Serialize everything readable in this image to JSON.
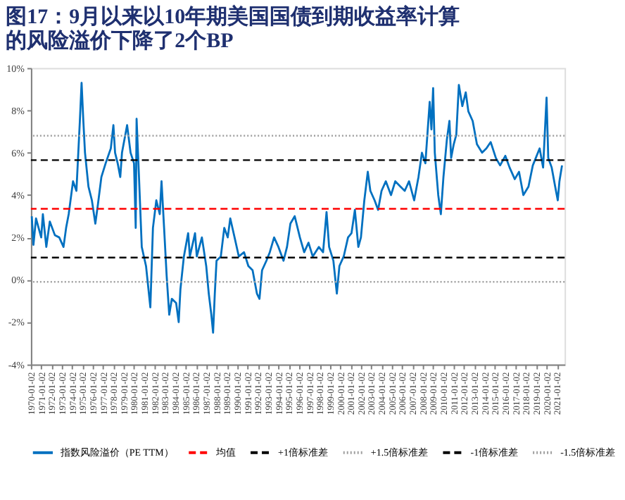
{
  "chart_data": {
    "type": "line",
    "title": "图17：9月以来以10年期美国国债到期收益率计算的风险溢价下降了2个BP",
    "x": [
      "1970-02",
      "1970-04",
      "1970-07",
      "1971-01",
      "1971-03",
      "1971-07",
      "1971-11",
      "1972-05",
      "1972-10",
      "1973-03",
      "1973-06",
      "1973-09",
      "1974-02",
      "1974-06",
      "1974-10",
      "1974-12",
      "1975-02",
      "1975-04",
      "1975-08",
      "1975-12",
      "1976-04",
      "1976-07",
      "1976-11",
      "1977-04",
      "1977-10",
      "1978-01",
      "1978-03",
      "1978-06",
      "1978-09",
      "1978-11",
      "1979-05",
      "1979-09",
      "1980-01",
      "1980-03",
      "1980-04",
      "1980-07",
      "1980-10",
      "1981-03",
      "1981-08",
      "1981-11",
      "1982-03",
      "1982-07",
      "1982-09",
      "1982-12",
      "1983-03",
      "1983-06",
      "1983-09",
      "1984-02",
      "1984-05",
      "1984-07",
      "1984-11",
      "1985-04",
      "1985-06",
      "1985-12",
      "1986-02",
      "1986-08",
      "1987-01",
      "1987-04",
      "1987-07",
      "1987-09",
      "1987-11",
      "1988-01",
      "1988-06",
      "1988-10",
      "1989-02",
      "1989-05",
      "1989-10",
      "1990-03",
      "1990-09",
      "1991-02",
      "1991-07",
      "1991-12",
      "1992-03",
      "1992-06",
      "1992-11",
      "1993-03",
      "1993-08",
      "1994-01",
      "1994-07",
      "1994-11",
      "1995-03",
      "1995-08",
      "1996-02",
      "1996-07",
      "1996-12",
      "1997-05",
      "1997-12",
      "1998-05",
      "1998-09",
      "1998-12",
      "1999-05",
      "1999-09",
      "1999-12",
      "2000-05",
      "2000-10",
      "2001-02",
      "2001-06",
      "2001-10",
      "2002-01",
      "2002-05",
      "2002-09",
      "2002-12",
      "2003-05",
      "2003-09",
      "2004-01",
      "2004-06",
      "2004-12",
      "2005-05",
      "2005-11",
      "2006-04",
      "2006-09",
      "2007-03",
      "2007-08",
      "2007-12",
      "2008-04",
      "2008-09",
      "2008-11",
      "2009-01",
      "2009-03",
      "2009-07",
      "2009-10",
      "2010-01",
      "2010-05",
      "2010-08",
      "2010-10",
      "2011-01",
      "2011-04",
      "2011-07",
      "2011-11",
      "2012-03",
      "2012-06",
      "2012-11",
      "2013-04",
      "2013-10",
      "2014-03",
      "2014-08",
      "2015-02",
      "2015-07",
      "2016-01",
      "2016-06",
      "2016-12",
      "2017-05",
      "2017-10",
      "2018-04",
      "2018-09",
      "2019-03",
      "2019-05",
      "2019-09",
      "2020-01",
      "2020-03",
      "2020-07",
      "2020-11",
      "2021-02",
      "2021-04",
      "2021-07"
    ],
    "series": [
      {
        "name": "指数风险溢价（PE TTM）",
        "color": "#0070c0",
        "values": [
          3.0,
          1.65,
          2.9,
          2.0,
          3.1,
          1.55,
          2.75,
          2.1,
          2.0,
          1.55,
          2.45,
          3.1,
          4.65,
          4.2,
          7.5,
          9.3,
          7.5,
          6.0,
          4.4,
          3.75,
          2.65,
          3.55,
          4.85,
          5.5,
          6.2,
          7.3,
          6.0,
          5.5,
          4.85,
          6.0,
          7.3,
          6.0,
          5.5,
          2.45,
          7.6,
          4.65,
          1.55,
          0.65,
          -1.3,
          2.45,
          3.75,
          3.1,
          4.65,
          2.45,
          0.2,
          -1.65,
          -0.9,
          -1.1,
          -2.0,
          -0.45,
          1.1,
          2.2,
          1.1,
          2.2,
          1.1,
          2.0,
          0.65,
          -0.65,
          -1.65,
          -2.5,
          -0.65,
          0.9,
          1.1,
          2.45,
          2.0,
          2.9,
          2.0,
          1.1,
          1.3,
          0.65,
          0.45,
          -0.65,
          -0.9,
          0.45,
          0.9,
          1.3,
          2.0,
          1.55,
          0.9,
          1.55,
          2.65,
          3.0,
          2.0,
          1.3,
          1.75,
          1.1,
          1.55,
          1.3,
          3.2,
          1.55,
          0.9,
          -0.65,
          0.65,
          1.1,
          2.0,
          2.2,
          3.3,
          1.55,
          2.0,
          3.75,
          5.1,
          4.2,
          3.75,
          3.3,
          4.2,
          4.65,
          4.0,
          4.65,
          4.4,
          4.2,
          4.65,
          3.75,
          4.85,
          6.0,
          5.5,
          8.4,
          7.1,
          9.05,
          6.0,
          4.0,
          3.1,
          4.85,
          6.6,
          7.5,
          5.75,
          6.4,
          6.85,
          9.2,
          8.2,
          8.85,
          7.95,
          7.5,
          6.4,
          6.0,
          6.2,
          6.5,
          5.75,
          5.4,
          5.85,
          5.3,
          4.75,
          5.1,
          4.0,
          4.4,
          5.4,
          6.0,
          6.2,
          5.3,
          8.6,
          5.75,
          5.3,
          4.4,
          3.75,
          4.65,
          5.4
        ]
      }
    ],
    "ref_lines": [
      {
        "axis": "y",
        "value": 3.35,
        "label": "均值",
        "color": "#ff0000",
        "line_style": "dashed"
      },
      {
        "axis": "y",
        "value": 5.65,
        "label": "+1倍标准差",
        "color": "#000000",
        "line_style": "dashed"
      },
      {
        "axis": "y",
        "value": 6.8,
        "label": "+1.5倍标准差",
        "color": "#a0a0a0",
        "line_style": "dotted"
      },
      {
        "axis": "y",
        "value": 1.05,
        "label": "-1倍标准差",
        "color": "#000000",
        "line_style": "dashed"
      },
      {
        "axis": "y",
        "value": -0.1,
        "label": "-1.5倍标准差",
        "color": "#a0a0a0",
        "line_style": "dotted"
      }
    ],
    "xlim": [
      "1970-01-01",
      "2021-10-01"
    ],
    "xticks": [
      "1970-01-02",
      "1971-01-02",
      "1972-01-02",
      "1973-01-02",
      "1974-01-02",
      "1975-01-02",
      "1976-01-02",
      "1977-01-02",
      "1978-01-02",
      "1979-01-02",
      "1980-01-02",
      "1981-01-02",
      "1982-01-02",
      "1983-01-02",
      "1984-01-02",
      "1985-01-02",
      "1986-01-02",
      "1987-01-02",
      "1988-01-02",
      "1989-01-02",
      "1990-01-02",
      "1991-01-02",
      "1992-01-02",
      "1993-01-02",
      "1994-01-02",
      "1995-01-02",
      "1996-01-02",
      "1997-01-02",
      "1998-01-02",
      "1999-01-02",
      "2000-01-02",
      "2001-01-02",
      "2002-01-02",
      "2003-01-02",
      "2004-01-02",
      "2005-01-02",
      "2006-01-02",
      "2007-01-02",
      "2008-01-02",
      "2009-01-02",
      "2010-01-02",
      "2011-01-02",
      "2012-01-02",
      "2013-01-02",
      "2014-01-02",
      "2015-01-02",
      "2016-01-02",
      "2017-01-02",
      "2018-01-02",
      "2019-01-02",
      "2020-01-02",
      "2021-01-02"
    ],
    "ylim": [
      -4,
      10
    ],
    "yticks": [
      {
        "value": -4,
        "label": "-4%"
      },
      {
        "value": -2,
        "label": "-2%"
      },
      {
        "value": 0,
        "label": "0%"
      },
      {
        "value": 2,
        "label": "2%"
      },
      {
        "value": 4,
        "label": "4%"
      },
      {
        "value": 6,
        "label": "6%"
      },
      {
        "value": 8,
        "label": "8%"
      },
      {
        "value": 10,
        "label": "10%"
      }
    ],
    "grid": false,
    "legend": "bottom",
    "line_style": "solid",
    "marker": "none"
  }
}
